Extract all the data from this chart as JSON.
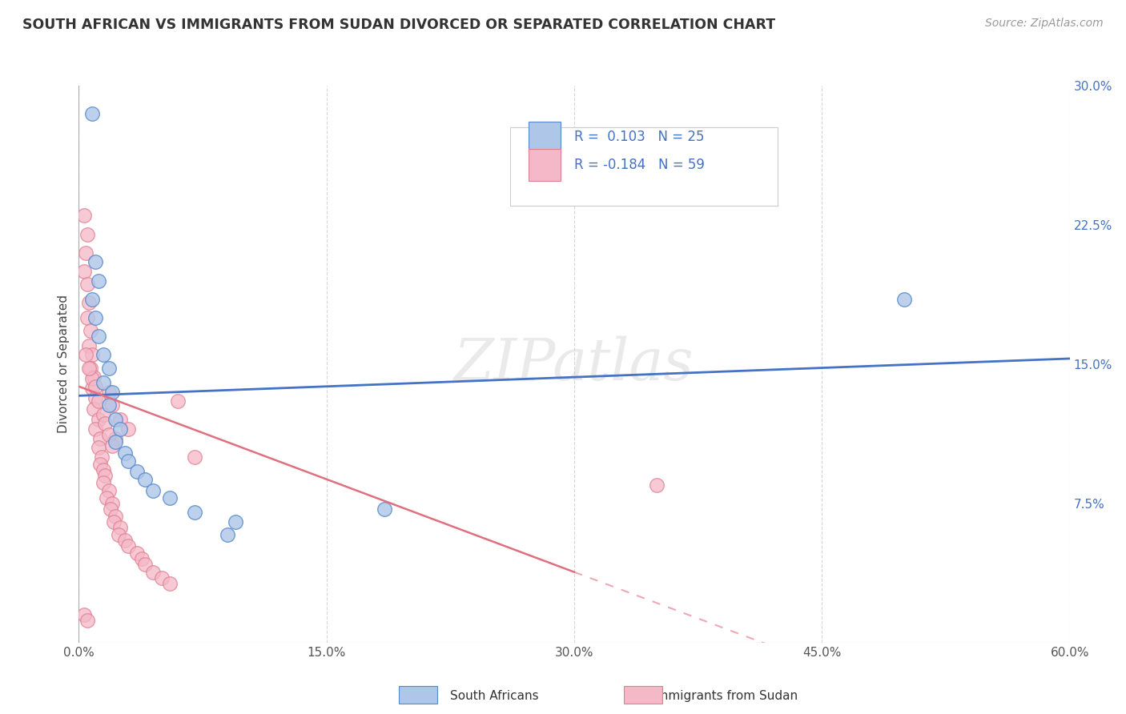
{
  "title": "SOUTH AFRICAN VS IMMIGRANTS FROM SUDAN DIVORCED OR SEPARATED CORRELATION CHART",
  "source": "Source: ZipAtlas.com",
  "ylabel": "Divorced or Separated",
  "xlim": [
    0.0,
    0.6
  ],
  "ylim": [
    0.0,
    0.3
  ],
  "xtick_labels": [
    "0.0%",
    "15.0%",
    "30.0%",
    "45.0%",
    "60.0%"
  ],
  "xtick_vals": [
    0.0,
    0.15,
    0.3,
    0.45,
    0.6
  ],
  "ytick_labels": [
    "7.5%",
    "15.0%",
    "22.5%",
    "30.0%"
  ],
  "ytick_vals": [
    0.075,
    0.15,
    0.225,
    0.3
  ],
  "sa_color": "#aec6e8",
  "sudan_color": "#f4b8c8",
  "sa_edge_color": "#5588cc",
  "sudan_edge_color": "#e08090",
  "regression_blue": "#4472c4",
  "regression_pink": "#e07080",
  "watermark": "ZIPatlas",
  "background_color": "#ffffff",
  "grid_color": "#cccccc",
  "r_sa": "0.103",
  "n_sa": "25",
  "r_sudan": "-0.184",
  "n_sudan": "59",
  "sa_points": [
    [
      0.008,
      0.285
    ],
    [
      0.01,
      0.205
    ],
    [
      0.012,
      0.195
    ],
    [
      0.008,
      0.185
    ],
    [
      0.01,
      0.175
    ],
    [
      0.012,
      0.165
    ],
    [
      0.015,
      0.155
    ],
    [
      0.018,
      0.148
    ],
    [
      0.015,
      0.14
    ],
    [
      0.02,
      0.135
    ],
    [
      0.018,
      0.128
    ],
    [
      0.022,
      0.12
    ],
    [
      0.025,
      0.115
    ],
    [
      0.022,
      0.108
    ],
    [
      0.028,
      0.102
    ],
    [
      0.03,
      0.098
    ],
    [
      0.035,
      0.092
    ],
    [
      0.04,
      0.088
    ],
    [
      0.045,
      0.082
    ],
    [
      0.055,
      0.078
    ],
    [
      0.07,
      0.07
    ],
    [
      0.095,
      0.065
    ],
    [
      0.09,
      0.058
    ],
    [
      0.185,
      0.072
    ],
    [
      0.5,
      0.185
    ]
  ],
  "sudan_points": [
    [
      0.003,
      0.23
    ],
    [
      0.005,
      0.22
    ],
    [
      0.004,
      0.21
    ],
    [
      0.003,
      0.2
    ],
    [
      0.005,
      0.193
    ],
    [
      0.006,
      0.183
    ],
    [
      0.005,
      0.175
    ],
    [
      0.007,
      0.168
    ],
    [
      0.006,
      0.16
    ],
    [
      0.008,
      0.155
    ],
    [
      0.007,
      0.148
    ],
    [
      0.009,
      0.143
    ],
    [
      0.008,
      0.137
    ],
    [
      0.01,
      0.132
    ],
    [
      0.009,
      0.126
    ],
    [
      0.012,
      0.12
    ],
    [
      0.01,
      0.115
    ],
    [
      0.013,
      0.11
    ],
    [
      0.012,
      0.105
    ],
    [
      0.014,
      0.1
    ],
    [
      0.013,
      0.096
    ],
    [
      0.015,
      0.093
    ],
    [
      0.016,
      0.09
    ],
    [
      0.015,
      0.086
    ],
    [
      0.018,
      0.082
    ],
    [
      0.017,
      0.078
    ],
    [
      0.02,
      0.075
    ],
    [
      0.019,
      0.072
    ],
    [
      0.022,
      0.068
    ],
    [
      0.021,
      0.065
    ],
    [
      0.025,
      0.062
    ],
    [
      0.024,
      0.058
    ],
    [
      0.028,
      0.055
    ],
    [
      0.03,
      0.052
    ],
    [
      0.035,
      0.048
    ],
    [
      0.038,
      0.045
    ],
    [
      0.04,
      0.042
    ],
    [
      0.045,
      0.038
    ],
    [
      0.05,
      0.035
    ],
    [
      0.055,
      0.032
    ],
    [
      0.003,
      0.015
    ],
    [
      0.005,
      0.012
    ],
    [
      0.06,
      0.13
    ],
    [
      0.07,
      0.1
    ],
    [
      0.35,
      0.085
    ],
    [
      0.018,
      0.135
    ],
    [
      0.02,
      0.128
    ],
    [
      0.025,
      0.12
    ],
    [
      0.03,
      0.115
    ],
    [
      0.022,
      0.11
    ],
    [
      0.008,
      0.142
    ],
    [
      0.01,
      0.138
    ],
    [
      0.012,
      0.13
    ],
    [
      0.015,
      0.123
    ],
    [
      0.006,
      0.148
    ],
    [
      0.004,
      0.155
    ],
    [
      0.016,
      0.118
    ],
    [
      0.018,
      0.112
    ],
    [
      0.02,
      0.106
    ]
  ]
}
